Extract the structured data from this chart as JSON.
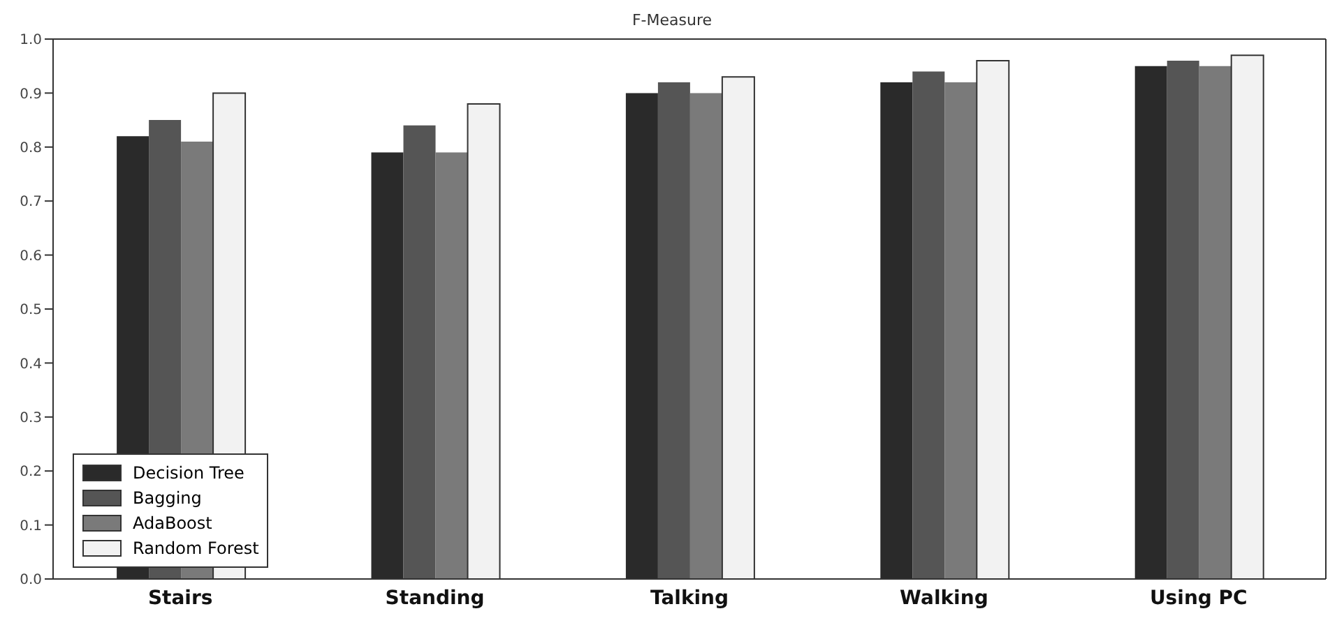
{
  "chart_data": {
    "type": "bar",
    "title": "F-Measure",
    "categories": [
      "Stairs",
      "Standing",
      "Talking",
      "Walking",
      "Using PC"
    ],
    "series": [
      {
        "name": "Decision Tree",
        "color": "#2a2a2a",
        "values": [
          0.82,
          0.79,
          0.9,
          0.92,
          0.95
        ]
      },
      {
        "name": "Bagging",
        "color": "#555555",
        "values": [
          0.85,
          0.84,
          0.92,
          0.94,
          0.96
        ]
      },
      {
        "name": "AdaBoost",
        "color": "#7a7a7a",
        "values": [
          0.81,
          0.79,
          0.9,
          0.92,
          0.95
        ]
      },
      {
        "name": "Random Forest",
        "color": "#f2f2f2",
        "values": [
          0.9,
          0.88,
          0.93,
          0.96,
          0.97
        ]
      }
    ],
    "ylim": [
      0,
      1
    ],
    "yticks": [
      {
        "value": 0,
        "label": "0.0"
      },
      {
        "value": 0.1,
        "label": "0.1"
      },
      {
        "value": 0.2,
        "label": "0.2"
      },
      {
        "value": 0.3,
        "label": "0.3"
      },
      {
        "value": 0.4,
        "label": "0.4"
      },
      {
        "value": 0.5,
        "label": "0.5"
      },
      {
        "value": 0.6,
        "label": "0.6"
      },
      {
        "value": 0.7,
        "label": "0.7"
      },
      {
        "value": 0.8,
        "label": "0.8"
      },
      {
        "value": 0.9,
        "label": "0.9"
      },
      {
        "value": 1,
        "label": "1.0"
      }
    ],
    "grid": false,
    "legend": "bottom left"
  }
}
